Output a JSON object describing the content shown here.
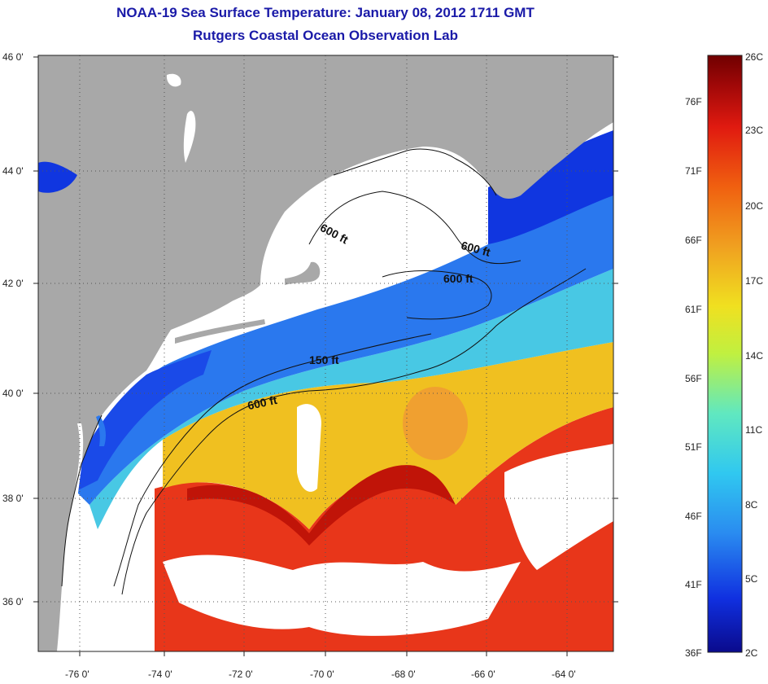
{
  "header": {
    "title": "NOAA-19 Sea Surface Temperature:  January 08, 2012 1711 GMT",
    "subtitle": "Rutgers Coastal Ocean Observation Lab"
  },
  "map": {
    "lat_ticks": [
      "46 0'",
      "44 0'",
      "42 0'",
      "40 0'",
      "38 0'",
      "36 0'"
    ],
    "lon_ticks": [
      "-76 0'",
      "-74 0'",
      "-72 0'",
      "-70 0'",
      "-68 0'",
      "-66 0'",
      "-64 0'"
    ],
    "contours": [
      "600 ft",
      "600 ft",
      "600 ft",
      "150 ft",
      "600 ft"
    ],
    "colors": {
      "land": "#a8a8a8",
      "cloud": "#ffffff",
      "cold_blue": "#1030e0",
      "mid_blue": "#2a8cf0",
      "cyan": "#40c8e8",
      "yellow": "#e8e020",
      "orange": "#f0a020",
      "red": "#e02010",
      "dark_red": "#c01008"
    }
  },
  "colorbar": {
    "f_labels": [
      "76F",
      "71F",
      "66F",
      "61F",
      "56F",
      "51F",
      "46F",
      "41F",
      "36F"
    ],
    "c_labels": [
      "26C",
      "23C",
      "20C",
      "17C",
      "14C",
      "11C",
      "8C",
      "5C",
      "2C"
    ],
    "stops": [
      "#0a0a8c",
      "#1030e0",
      "#2a8cf0",
      "#30c8f0",
      "#60e8c0",
      "#c0f040",
      "#f0e020",
      "#f0a020",
      "#f06010",
      "#e01a10",
      "#a00808",
      "#700000"
    ]
  }
}
